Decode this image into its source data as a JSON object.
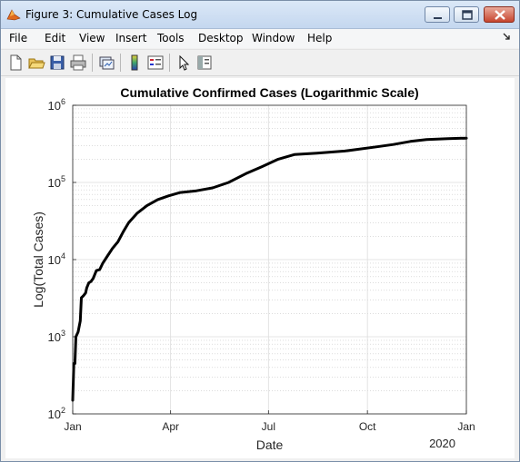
{
  "window": {
    "title": "Figure 3: Cumulative Cases Log"
  },
  "menu": {
    "items": [
      "File",
      "Edit",
      "View",
      "Insert",
      "Tools",
      "Desktop",
      "Window",
      "Help"
    ]
  },
  "toolbar": {
    "icons": [
      "new-figure-icon",
      "open-file-icon",
      "save-icon",
      "print-icon",
      "link-plot-icon",
      "colorbar-icon",
      "legend-icon",
      "edit-plot-arrow-icon",
      "property-inspector-icon"
    ]
  },
  "chart_data": {
    "type": "line",
    "title": "Cumulative Confirmed Cases (Logarithmic Scale)",
    "xlabel": "Date",
    "ylabel": "Log(Total Cases)",
    "x_year_label": "2020",
    "x_tick_labels": [
      "Jan",
      "Apr",
      "Jul",
      "Oct",
      "Jan"
    ],
    "y_tick_labels": [
      {
        "base": "10",
        "exp": "2"
      },
      {
        "base": "10",
        "exp": "3"
      },
      {
        "base": "10",
        "exp": "4"
      },
      {
        "base": "10",
        "exp": "5"
      },
      {
        "base": "10",
        "exp": "6"
      }
    ],
    "y_scale": "log",
    "ylim": [
      100,
      1000000
    ],
    "xlim": [
      "2020-01-01",
      "2021-01-01"
    ],
    "grid": true,
    "minor_grid": true,
    "line_color": "#000000",
    "series": [
      {
        "x": [
          "2020-01-01",
          "2020-01-02",
          "2020-01-03",
          "2020-01-04",
          "2020-01-06",
          "2020-01-08",
          "2020-01-09",
          "2020-01-11",
          "2020-01-13",
          "2020-01-14",
          "2020-01-16",
          "2020-01-18",
          "2020-01-20",
          "2020-01-23",
          "2020-01-26",
          "2020-01-29",
          "2020-02-02",
          "2020-02-07",
          "2020-02-12",
          "2020-02-17",
          "2020-02-22",
          "2020-03-01",
          "2020-03-10",
          "2020-03-20",
          "2020-03-30",
          "2020-04-10",
          "2020-04-25",
          "2020-05-10",
          "2020-05-25",
          "2020-06-10",
          "2020-06-25",
          "2020-07-10",
          "2020-07-25",
          "2020-08-15",
          "2020-09-10",
          "2020-10-10",
          "2020-10-25",
          "2020-11-10",
          "2020-11-25",
          "2020-12-15",
          "2021-01-01"
        ],
        "y": [
          150,
          450,
          450,
          1000,
          1150,
          1600,
          3200,
          3400,
          3700,
          4300,
          5000,
          5200,
          5700,
          7200,
          7400,
          9000,
          11000,
          14000,
          17000,
          23000,
          30000,
          40000,
          50000,
          60000,
          67000,
          74000,
          78000,
          85000,
          100000,
          130000,
          160000,
          200000,
          230000,
          240000,
          255000,
          290000,
          310000,
          340000,
          360000,
          370000,
          375000
        ]
      }
    ]
  }
}
